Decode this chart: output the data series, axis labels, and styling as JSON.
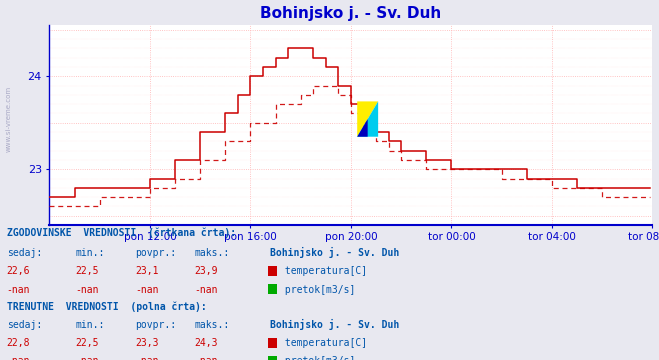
{
  "title": "Bohinjsko j. - Sv. Duh",
  "title_color": "#0000cc",
  "bg_color": "#e8e8f0",
  "plot_bg_color": "#ffffff",
  "grid_color": "#ffb0b0",
  "axis_color": "#0000cc",
  "line_color": "#cc0000",
  "ylim": [
    22.4,
    24.55
  ],
  "yticks": [
    23,
    24
  ],
  "xlabel_ticks": [
    "pon 12:00",
    "pon 16:00",
    "pon 20:00",
    "tor 00:00",
    "tor 04:00",
    "tor 08:00"
  ],
  "n_points": 288,
  "hist_vals": [
    "22,6",
    "22,5",
    "23,1",
    "23,9"
  ],
  "curr_vals": [
    "22,8",
    "22,5",
    "23,3",
    "24,3"
  ],
  "label1_color": "#0055aa",
  "red_color": "#cc0000",
  "green_color": "#007700"
}
